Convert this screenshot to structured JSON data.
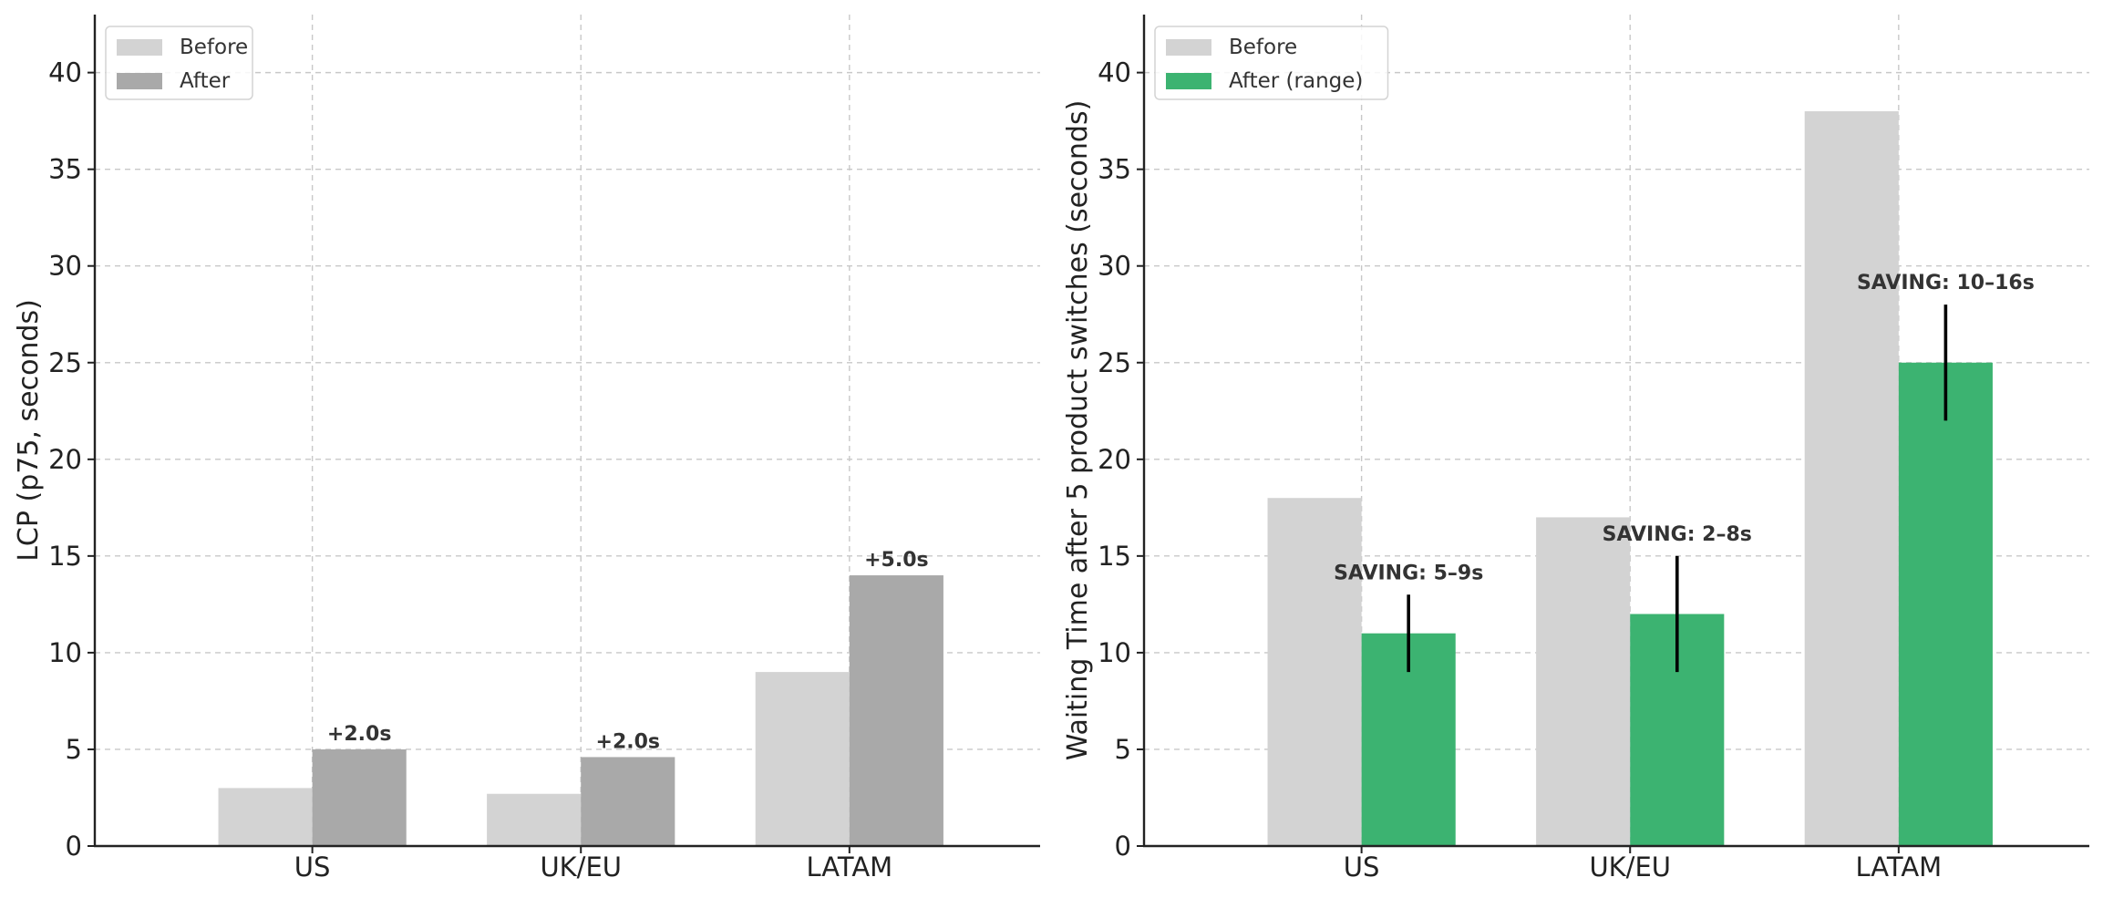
{
  "colors": {
    "before": "#d3d3d3",
    "after_grey": "#a9a9a9",
    "after_green": "#3cb371",
    "error_bar": "#000000"
  },
  "chart_data": [
    {
      "type": "bar",
      "title": "",
      "xlabel": "",
      "ylabel": "LCP (p75, seconds)",
      "ylim": [
        0,
        43
      ],
      "yticks": [
        0,
        5,
        10,
        15,
        20,
        25,
        30,
        35,
        40
      ],
      "grid": true,
      "legend_position": "top-left",
      "categories": [
        "US",
        "UK/EU",
        "LATAM"
      ],
      "series": [
        {
          "name": "Before",
          "color_key": "before",
          "values": [
            3,
            2.7,
            9
          ]
        },
        {
          "name": "After",
          "color_key": "after_grey",
          "values": [
            5,
            4.6,
            14
          ]
        }
      ],
      "annotations": [
        "+2.0s",
        "+2.0s",
        "+5.0s"
      ]
    },
    {
      "type": "bar",
      "title": "",
      "xlabel": "",
      "ylabel": "Waiting Time after 5 product switches (seconds)",
      "ylim": [
        0,
        43
      ],
      "yticks": [
        0,
        5,
        10,
        15,
        20,
        25,
        30,
        35,
        40
      ],
      "grid": true,
      "legend_position": "top-left",
      "categories": [
        "US",
        "UK/EU",
        "LATAM"
      ],
      "series": [
        {
          "name": "Before",
          "color_key": "before",
          "values": [
            18,
            17,
            38
          ]
        },
        {
          "name": "After (range)",
          "color_key": "after_green",
          "values": [
            11,
            12,
            25
          ],
          "error_low": [
            9,
            9,
            22
          ],
          "error_high": [
            13,
            15,
            28
          ]
        }
      ],
      "annotations": [
        "SAVING: 5–9s",
        "SAVING: 2–8s",
        "SAVING: 10–16s"
      ]
    }
  ]
}
